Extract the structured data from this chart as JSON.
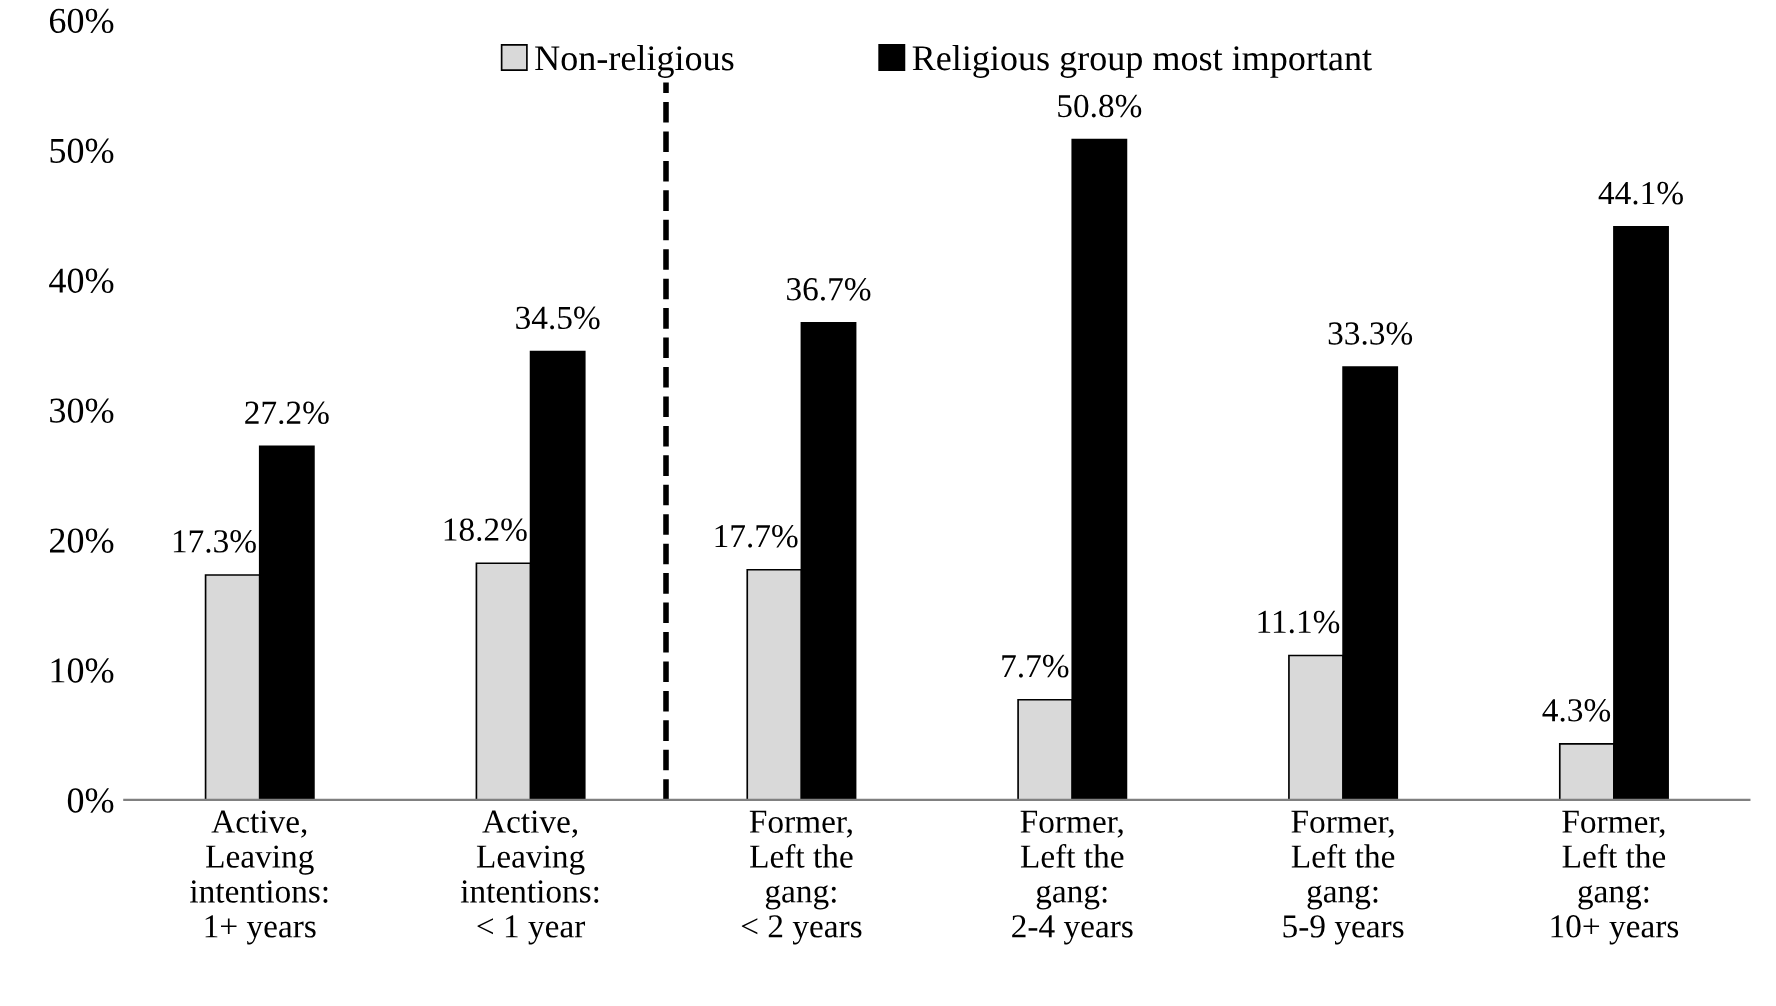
{
  "chart_data": {
    "type": "bar",
    "categories": [
      "Active,\nLeaving\nintentions:\n1+ years",
      "Active,\nLeaving\nintentions:\n< 1 year",
      "Former,\nLeft the\ngang:\n< 2 years",
      "Former,\nLeft the\ngang:\n2-4 years",
      "Former,\nLeft the\ngang:\n5-9 years",
      "Former,\nLeft the\ngang:\n10+ years"
    ],
    "series": [
      {
        "name": "Non-religious",
        "color": "#d9d9d9",
        "values": [
          17.3,
          18.2,
          17.7,
          7.7,
          11.1,
          4.3
        ],
        "value_labels": [
          "17.3%",
          "18.2%",
          "17.7%",
          "7.7%",
          "11.1%",
          "4.3%"
        ]
      },
      {
        "name": "Religious group most important",
        "color": "#000000",
        "values": [
          27.2,
          34.5,
          36.7,
          50.8,
          33.3,
          44.1
        ],
        "value_labels": [
          "27.2%",
          "34.5%",
          "36.7%",
          "50.8%",
          "33.3%",
          "44.1%"
        ]
      }
    ],
    "ylim": [
      0,
      60
    ],
    "yticks": [
      {
        "value": 0,
        "label": "0%"
      },
      {
        "value": 10,
        "label": "10%"
      },
      {
        "value": 20,
        "label": "20%"
      },
      {
        "value": 30,
        "label": "30%"
      },
      {
        "value": 40,
        "label": "40%"
      },
      {
        "value": 50,
        "label": "50%"
      },
      {
        "value": 60,
        "label": "60%"
      }
    ],
    "legend": "top",
    "grid": false
  }
}
